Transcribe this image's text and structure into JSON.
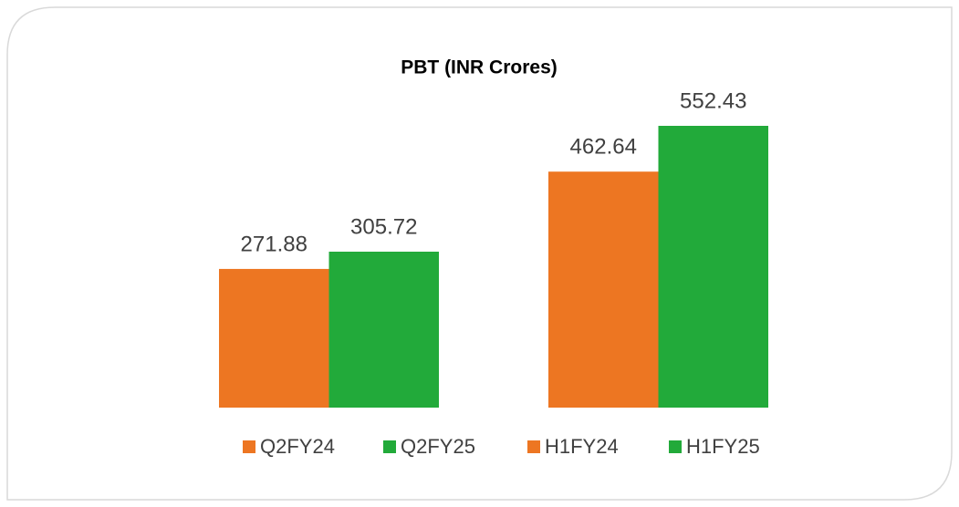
{
  "chart_data": {
    "type": "bar",
    "title": "PBT (INR Crores)",
    "categories": [
      null,
      null
    ],
    "series": [
      {
        "name": "Q2FY24",
        "color": "#ED7622",
        "values": [
          271.88,
          null
        ]
      },
      {
        "name": "Q2FY25",
        "color": "#22AA3A",
        "values": [
          305.72,
          null
        ]
      },
      {
        "name": "H1FY24",
        "color": "#ED7622",
        "values": [
          null,
          462.64
        ]
      },
      {
        "name": "H1FY25",
        "color": "#22AA3A",
        "values": [
          null,
          552.43
        ]
      }
    ],
    "legend": "bottom"
  }
}
